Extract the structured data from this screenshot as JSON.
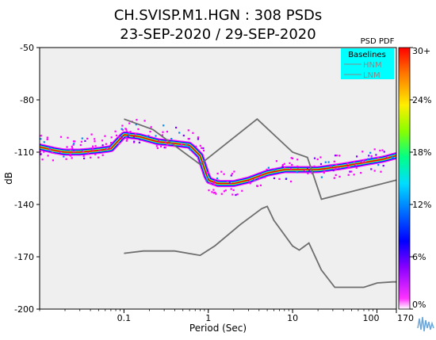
{
  "chart_data": {
    "type": "heatmap",
    "title": "CH.SVISP.M1.HGN : 308 PSDs",
    "subtitle": "23-SEP-2020 / 29-SEP-2020",
    "xlabel": "Period (Sec)",
    "ylabel": "dB",
    "x_scale": "log",
    "xlim": [
      0.01,
      170
    ],
    "ylim": [
      -200,
      -50
    ],
    "x_tick_labels": [
      "0.1",
      "1",
      "10",
      "100",
      "170"
    ],
    "x_tick_values": [
      0.1,
      1,
      10,
      100,
      170
    ],
    "y_ticks": [
      -50,
      -80,
      -110,
      -140,
      -170,
      -200
    ],
    "colorbar": {
      "label": "PSD PDF",
      "tick_labels": [
        "30+",
        "24%",
        "18%",
        "12%",
        "6%",
        "0%"
      ],
      "tick_values": [
        30,
        24,
        18,
        12,
        6,
        0
      ],
      "colors": [
        "#ff00ff",
        "#7700ff",
        "#0000ff",
        "#0088ff",
        "#00ddff",
        "#00ff88",
        "#88ff00",
        "#ffee00",
        "#ff8800",
        "#ff0000"
      ]
    },
    "legend": {
      "title": "Baselines",
      "entries": [
        "HNM",
        "LNM"
      ],
      "placement": "top-right"
    },
    "series": [
      {
        "name": "HNM",
        "x": [
          0.1,
          0.22,
          0.8,
          3.8,
          10,
          15,
          22,
          170
        ],
        "y": [
          -91,
          -97,
          -117,
          -91,
          -110,
          -113,
          -137,
          -126
        ]
      },
      {
        "name": "LNM",
        "x": [
          0.1,
          0.17,
          0.4,
          0.8,
          1.2,
          2.4,
          4.3,
          5,
          6,
          10,
          12,
          15.6,
          21.9,
          31.6,
          45,
          70,
          101,
          154,
          170
        ],
        "y": [
          -168,
          -166.7,
          -166.7,
          -169.2,
          -163.7,
          -151.5,
          -142.4,
          -141.1,
          -149.1,
          -163.8,
          -166.2,
          -162.1,
          -177.5,
          -187.5,
          -187.5,
          -187.5,
          -185,
          -184.4,
          -184.4
        ]
      }
    ],
    "density_band": {
      "x": [
        0.01,
        0.015,
        0.02,
        0.03,
        0.05,
        0.07,
        0.1,
        0.15,
        0.25,
        0.4,
        0.6,
        0.8,
        1.0,
        1.3,
        2,
        3,
        5,
        8,
        12,
        20,
        40,
        70,
        120,
        170
      ],
      "y": [
        -107,
        -109,
        -110,
        -110,
        -109,
        -108,
        -100,
        -101,
        -104,
        -105,
        -106,
        -112,
        -126,
        -128,
        -128,
        -126,
        -122,
        -120,
        -120,
        -120,
        -118,
        -116,
        -114,
        -112
      ]
    }
  }
}
